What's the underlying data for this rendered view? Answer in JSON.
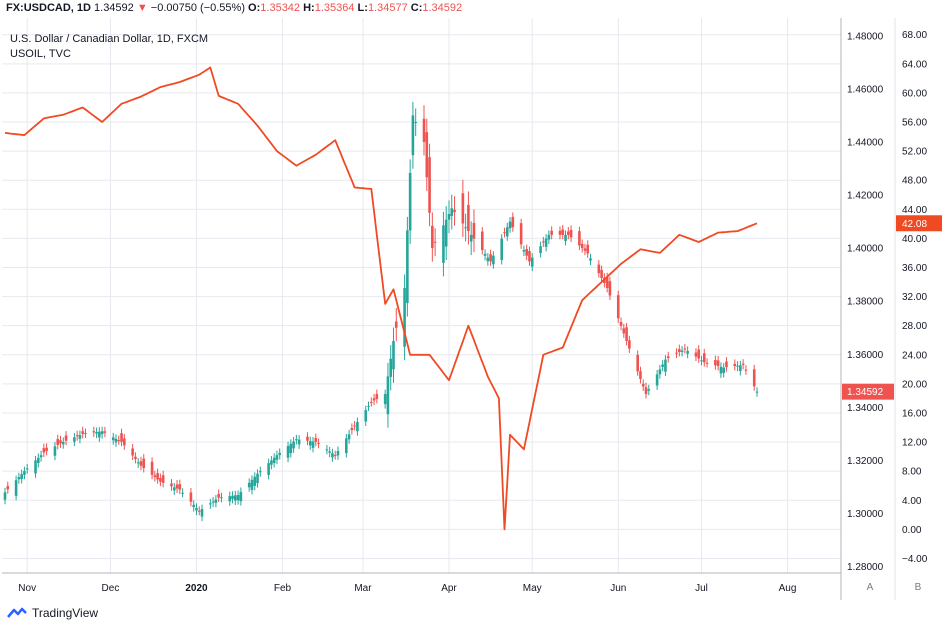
{
  "header": {
    "symbol": "FX:USDCAD, 1D",
    "last": "1.34592",
    "change": "−0.00750 (−0.55%)",
    "o_label": "O:",
    "o": "1.35342",
    "h_label": "H:",
    "h": "1.35364",
    "l_label": "L:",
    "l": "1.34577",
    "c_label": "C:",
    "c": "1.34592"
  },
  "title_main": "U.S. Dollar / Canadian Dollar, 1D, FXCM",
  "title_overlay": "USOIL, TVC",
  "footer": {
    "brand": "TradingView"
  },
  "buttons": {
    "auto": "A",
    "log": "B"
  },
  "colors": {
    "up": "#26a69a",
    "down": "#ef5350",
    "oil": "#f04a23",
    "grid": "#e6e9ef"
  },
  "chart_data": {
    "type": "candlestick+line",
    "x_tick_labels": [
      "Nov",
      "Dec",
      "2020",
      "Feb",
      "Mar",
      "Apr",
      "May",
      "Jun",
      "Jul",
      "Aug"
    ],
    "left_axis": {
      "name": "USDCAD",
      "ticks": [
        "1.48000",
        "1.46000",
        "1.44000",
        "1.42000",
        "1.40000",
        "1.38000",
        "1.36000",
        "1.34000",
        "1.32000",
        "1.30000",
        "1.28000"
      ],
      "ylim": [
        1.2776,
        1.4867
      ],
      "last_label": "1.34592"
    },
    "right_axis": {
      "name": "USOIL",
      "ticks": [
        "68.00",
        "64.00",
        "60.00",
        "56.00",
        "52.00",
        "48.00",
        "44.00",
        "40.00",
        "36.00",
        "32.00",
        "28.00",
        "24.00",
        "20.00",
        "16.00",
        "12.00",
        "8.00",
        "4.00",
        "0.00",
        "−4.00"
      ],
      "ylim": [
        -6.0,
        70.3
      ],
      "last_label": "42.08"
    },
    "usdcad_close_anchors": [
      [
        "2019-10-24",
        1.308
      ],
      [
        "2019-10-31",
        1.316
      ],
      [
        "2019-11-07",
        1.323
      ],
      [
        "2019-11-14",
        1.327
      ],
      [
        "2019-11-21",
        1.33
      ],
      [
        "2019-11-28",
        1.331
      ],
      [
        "2019-12-05",
        1.327
      ],
      [
        "2019-12-12",
        1.318
      ],
      [
        "2019-12-19",
        1.312
      ],
      [
        "2019-12-26",
        1.309
      ],
      [
        "2020-01-02",
        1.301
      ],
      [
        "2020-01-09",
        1.306
      ],
      [
        "2020-01-16",
        1.307
      ],
      [
        "2020-01-23",
        1.315
      ],
      [
        "2020-01-30",
        1.322
      ],
      [
        "2020-02-06",
        1.328
      ],
      [
        "2020-02-13",
        1.327
      ],
      [
        "2020-02-20",
        1.322
      ],
      [
        "2020-02-27",
        1.333
      ],
      [
        "2020-03-04",
        1.342
      ],
      [
        "2020-03-09",
        1.345
      ],
      [
        "2020-03-12",
        1.365
      ],
      [
        "2020-03-16",
        1.385
      ],
      [
        "2020-03-19",
        1.45
      ],
      [
        "2020-03-23",
        1.44
      ],
      [
        "2020-03-26",
        1.4
      ],
      [
        "2020-04-02",
        1.415
      ],
      [
        "2020-04-09",
        1.405
      ],
      [
        "2020-04-16",
        1.395
      ],
      [
        "2020-04-23",
        1.41
      ],
      [
        "2020-04-30",
        1.395
      ],
      [
        "2020-05-07",
        1.405
      ],
      [
        "2020-05-14",
        1.405
      ],
      [
        "2020-05-21",
        1.398
      ],
      [
        "2020-05-28",
        1.385
      ],
      [
        "2020-06-04",
        1.365
      ],
      [
        "2020-06-11",
        1.345
      ],
      [
        "2020-06-18",
        1.358
      ],
      [
        "2020-06-25",
        1.362
      ],
      [
        "2020-07-02",
        1.357
      ],
      [
        "2020-07-09",
        1.355
      ],
      [
        "2020-07-16",
        1.356
      ],
      [
        "2020-07-21",
        1.34592
      ]
    ],
    "usoil_close_anchors": [
      [
        "2019-10-24",
        54.5
      ],
      [
        "2019-10-31",
        54.2
      ],
      [
        "2019-11-07",
        56.5
      ],
      [
        "2019-11-14",
        57.0
      ],
      [
        "2019-11-21",
        58.0
      ],
      [
        "2019-11-28",
        56.0
      ],
      [
        "2019-12-05",
        58.5
      ],
      [
        "2019-12-12",
        59.5
      ],
      [
        "2019-12-19",
        60.8
      ],
      [
        "2019-12-26",
        61.5
      ],
      [
        "2020-01-02",
        62.5
      ],
      [
        "2020-01-06",
        63.5
      ],
      [
        "2020-01-09",
        59.6
      ],
      [
        "2020-01-16",
        58.5
      ],
      [
        "2020-01-23",
        55.5
      ],
      [
        "2020-01-30",
        52.0
      ],
      [
        "2020-02-06",
        50.0
      ],
      [
        "2020-02-13",
        51.5
      ],
      [
        "2020-02-20",
        53.5
      ],
      [
        "2020-02-27",
        47.0
      ],
      [
        "2020-03-04",
        46.8
      ],
      [
        "2020-03-09",
        31.0
      ],
      [
        "2020-03-12",
        33.0
      ],
      [
        "2020-03-18",
        24.0
      ],
      [
        "2020-03-25",
        24.0
      ],
      [
        "2020-04-01",
        20.5
      ],
      [
        "2020-04-08",
        28.0
      ],
      [
        "2020-04-15",
        21.0
      ],
      [
        "2020-04-19",
        18.0
      ],
      [
        "2020-04-21",
        0.0
      ],
      [
        "2020-04-23",
        13.0
      ],
      [
        "2020-04-28",
        11.0
      ],
      [
        "2020-05-05",
        24.0
      ],
      [
        "2020-05-12",
        25.0
      ],
      [
        "2020-05-19",
        31.5
      ],
      [
        "2020-05-26",
        34.0
      ],
      [
        "2020-06-02",
        36.5
      ],
      [
        "2020-06-09",
        38.5
      ],
      [
        "2020-06-16",
        38.0
      ],
      [
        "2020-06-23",
        40.5
      ],
      [
        "2020-06-30",
        39.5
      ],
      [
        "2020-07-07",
        40.8
      ],
      [
        "2020-07-14",
        41.0
      ],
      [
        "2020-07-21",
        42.08
      ]
    ]
  }
}
